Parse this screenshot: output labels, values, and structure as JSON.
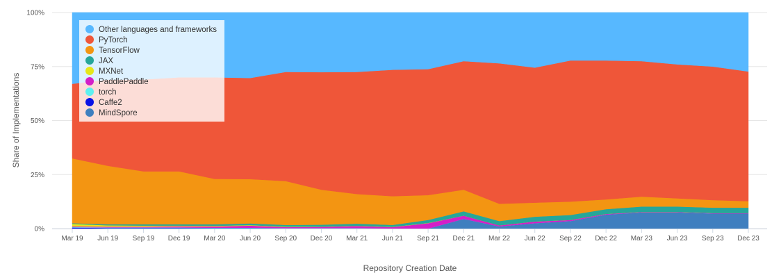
{
  "chart_data": {
    "type": "area",
    "stacked": true,
    "percent": true,
    "title": "",
    "xlabel": "Repository Creation Date",
    "ylabel": "Share of Implementations",
    "ylim": [
      0,
      100
    ],
    "y_ticks": [
      0,
      25,
      50,
      75,
      100
    ],
    "y_tick_labels": [
      "0%",
      "25%",
      "50%",
      "75%",
      "100%"
    ],
    "x_tick_labels": [
      "Mar 19",
      "Jun 19",
      "Sep 19",
      "Dec 19",
      "Mar 20",
      "Jun 20",
      "Sep 20",
      "Dec 20",
      "Mar 21",
      "Jun 21",
      "Sep 21",
      "Dec 21",
      "Mar 22",
      "Jun 22",
      "Sep 22",
      "Dec 22",
      "Mar 23",
      "Jun 23",
      "Sep 23",
      "Dec 23"
    ],
    "x": [
      "Mar 19",
      "Jun 19",
      "Sep 19",
      "Dec 19",
      "Mar 20",
      "Jun 20",
      "Sep 20",
      "Dec 20",
      "Mar 21",
      "Jun 21",
      "Sep 21",
      "Dec 21",
      "Mar 22",
      "Jun 22",
      "Sep 22",
      "Dec 22",
      "Mar 23",
      "Jun 23",
      "Sep 23",
      "Dec 23"
    ],
    "legend_position": "top-left",
    "series": [
      {
        "name": "MindSpore",
        "color": "#3f7fbf",
        "values": [
          0,
          0,
          0,
          0,
          0,
          0,
          0,
          0,
          0,
          0,
          0,
          4.5,
          1,
          2.5,
          3.5,
          6.5,
          7.5,
          7.5,
          7,
          7
        ]
      },
      {
        "name": "Caffe2",
        "color": "#0a12e6",
        "values": [
          0.5,
          0.3,
          0.3,
          0.3,
          0.2,
          0.2,
          0.1,
          0.1,
          0.1,
          0,
          0,
          0,
          0,
          0,
          0,
          0,
          0,
          0,
          0,
          0
        ]
      },
      {
        "name": "torch",
        "color": "#5ef0f0",
        "values": [
          0.2,
          0.2,
          0.2,
          0.2,
          0.2,
          0.2,
          0.1,
          0.1,
          0.1,
          0.1,
          0,
          0,
          0,
          0,
          0,
          0,
          0,
          0,
          0,
          0
        ]
      },
      {
        "name": "PaddlePaddle",
        "color": "#d41fc8",
        "values": [
          0.3,
          0.4,
          0.4,
          0.6,
          0.6,
          1,
          0.5,
          0.6,
          1,
          0.6,
          2.5,
          1.5,
          0.5,
          0.8,
          0.5,
          0.3,
          0.2,
          0.2,
          0.2,
          0.2
        ]
      },
      {
        "name": "MXNet",
        "color": "#e6e619",
        "values": [
          1.2,
          0.6,
          0.5,
          0.3,
          0.3,
          0.2,
          0.2,
          0.1,
          0.1,
          0.1,
          0.1,
          0,
          0,
          0,
          0,
          0,
          0,
          0,
          0,
          0
        ]
      },
      {
        "name": "JAX",
        "color": "#26a69a",
        "values": [
          0.3,
          0.5,
          0.6,
          0.6,
          0.7,
          0.8,
          0.8,
          0.9,
          1,
          0.9,
          1.4,
          2,
          2,
          2.2,
          2.3,
          2.2,
          2.5,
          2.5,
          2.5,
          2.5
        ]
      },
      {
        "name": "TensorFlow",
        "color": "#f39512",
        "values": [
          30,
          27,
          24.5,
          24.5,
          21,
          20.5,
          20.3,
          16.2,
          13.7,
          13.3,
          11.5,
          10,
          8,
          6.5,
          6.2,
          4.5,
          4.6,
          3.8,
          3.5,
          3
        ]
      },
      {
        "name": "PyTorch",
        "color": "#ef5639",
        "values": [
          34.5,
          39.8,
          42.5,
          43.5,
          47,
          46.8,
          50.5,
          54.4,
          56.5,
          58.5,
          58.3,
          59.5,
          65,
          62.5,
          65.3,
          64.3,
          62.7,
          62,
          61.8,
          60
        ]
      },
      {
        "name": "Other languages and frameworks",
        "color": "#57b8ff",
        "values": [
          33,
          31,
          31,
          30,
          30,
          30.3,
          27.5,
          27.6,
          27.5,
          26.5,
          26.2,
          22.5,
          23.5,
          25.5,
          22.2,
          22.2,
          22.5,
          24,
          25,
          27.3
        ]
      }
    ],
    "legend_order": [
      "Other languages and frameworks",
      "PyTorch",
      "TensorFlow",
      "JAX",
      "MXNet",
      "PaddlePaddle",
      "torch",
      "Caffe2",
      "MindSpore"
    ]
  }
}
